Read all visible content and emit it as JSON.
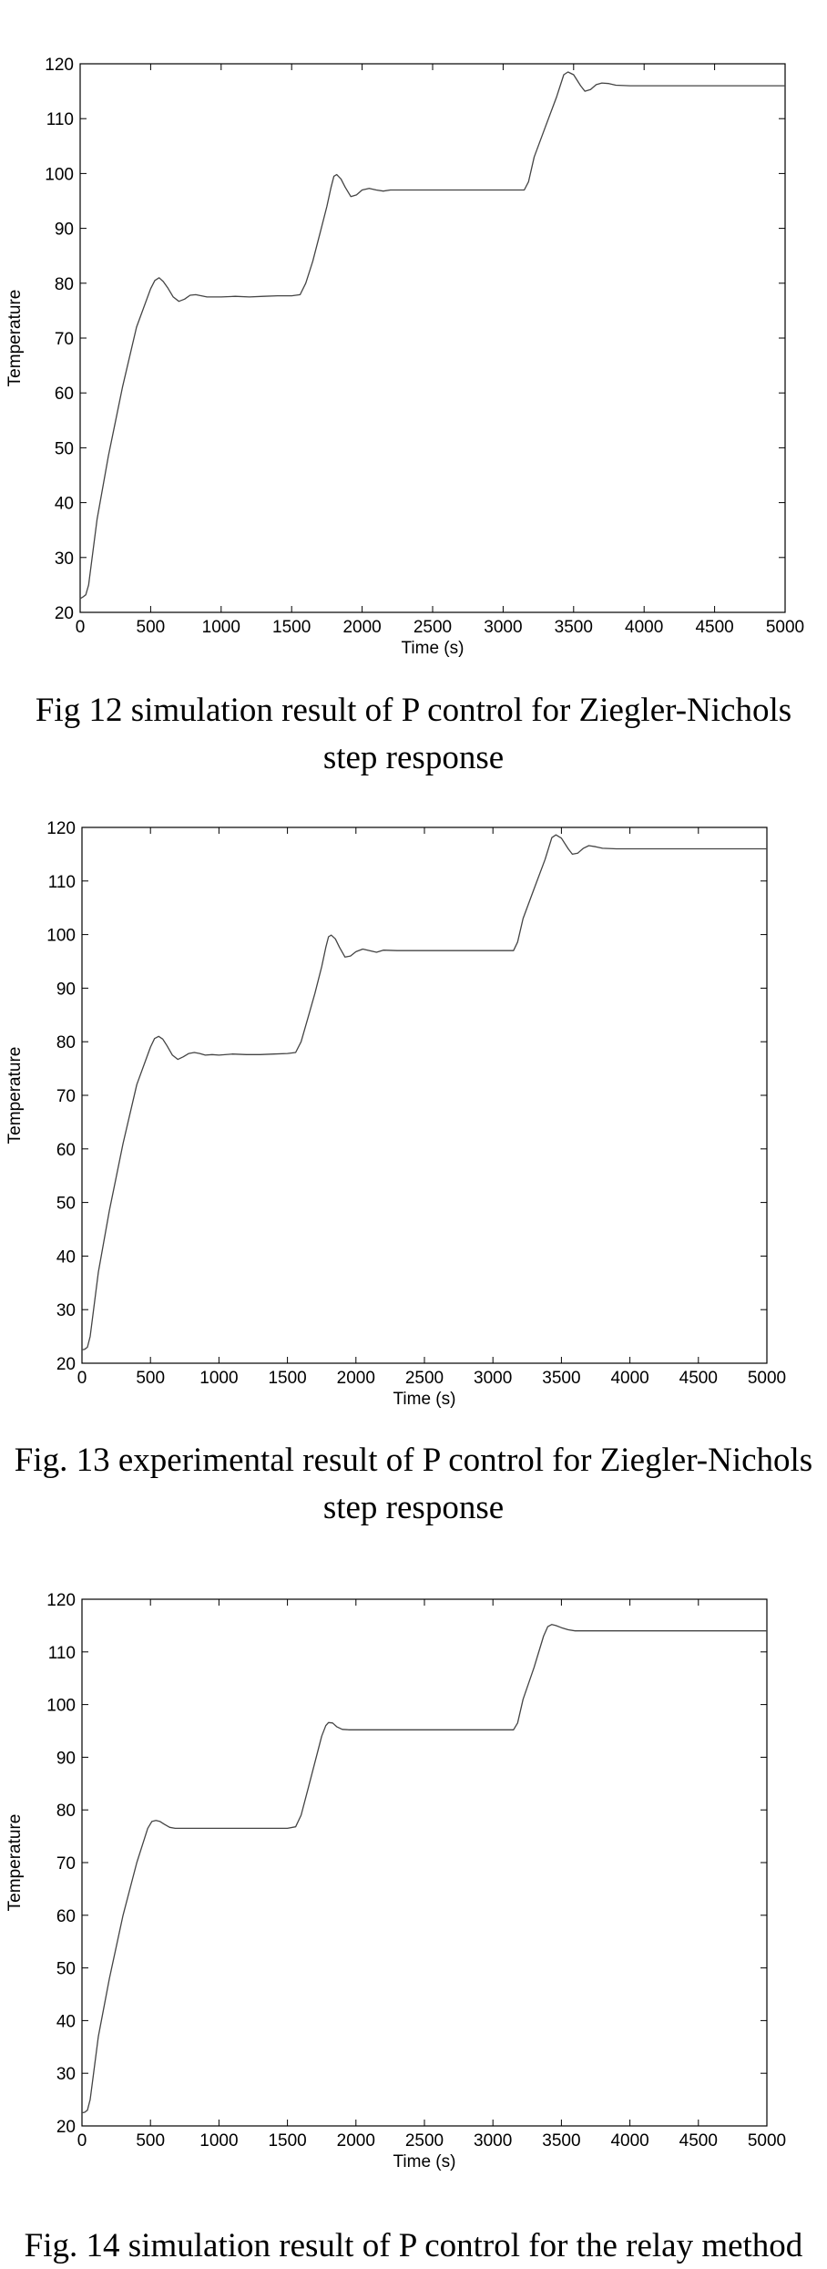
{
  "chart_data": [
    {
      "type": "line",
      "xlabel": "Time (s)",
      "ylabel": "Temperature",
      "xlim": [
        0,
        5000
      ],
      "ylim": [
        20,
        120
      ],
      "xticks": [
        "0",
        "500",
        "1000",
        "1500",
        "2000",
        "2500",
        "3000",
        "3500",
        "4000",
        "4500",
        "5000"
      ],
      "yticks": [
        "20",
        "30",
        "40",
        "50",
        "60",
        "70",
        "80",
        "90",
        "100",
        "110",
        "120"
      ],
      "grid": false,
      "series": [
        {
          "x": [
            0,
            20,
            40,
            60,
            80,
            120,
            200,
            300,
            400,
            500,
            530,
            560,
            590,
            620,
            660,
            700,
            740,
            780,
            820,
            860,
            900,
            950,
            1000,
            1100,
            1200,
            1300,
            1400,
            1500,
            1560,
            1600,
            1650,
            1700,
            1750,
            1780,
            1800,
            1820,
            1850,
            1880,
            1920,
            1960,
            2000,
            2050,
            2100,
            2150,
            2200,
            2300,
            2400,
            2500,
            2700,
            3000,
            3150,
            3180,
            3220,
            3300,
            3380,
            3430,
            3460,
            3500,
            3550,
            3580,
            3620,
            3660,
            3700,
            3750,
            3800,
            3900,
            4000,
            4500,
            5000
          ],
          "y": [
            22.5,
            22.8,
            23.2,
            25,
            29,
            37,
            48.5,
            61,
            72,
            79,
            80.5,
            81,
            80.3,
            79.2,
            77.5,
            76.7,
            77.1,
            77.8,
            77.9,
            77.7,
            77.5,
            77.5,
            77.5,
            77.6,
            77.5,
            77.6,
            77.7,
            77.7,
            77.9,
            80,
            84,
            89,
            94,
            97.5,
            99.5,
            99.8,
            99,
            97.5,
            95.8,
            96.1,
            97,
            97.3,
            97,
            96.8,
            97,
            97,
            97,
            97,
            97,
            97,
            97,
            98.5,
            103,
            108.5,
            114,
            118,
            118.5,
            118,
            116,
            115,
            115.3,
            116.2,
            116.5,
            116.4,
            116.1,
            116,
            116,
            116,
            116
          ]
        }
      ]
    },
    {
      "type": "line",
      "xlabel": "Time (s)",
      "ylabel": "Temperature",
      "xlim": [
        0,
        5000
      ],
      "ylim": [
        20,
        120
      ],
      "xticks": [
        "0",
        "500",
        "1000",
        "1500",
        "2000",
        "2500",
        "3000",
        "3500",
        "4000",
        "4500",
        "5000"
      ],
      "yticks": [
        "20",
        "30",
        "40",
        "50",
        "60",
        "70",
        "80",
        "90",
        "100",
        "110",
        "120"
      ],
      "grid": false,
      "series": [
        {
          "x": [
            0,
            20,
            40,
            60,
            80,
            120,
            200,
            300,
            400,
            500,
            530,
            560,
            590,
            620,
            660,
            700,
            740,
            780,
            820,
            860,
            900,
            950,
            1000,
            1100,
            1200,
            1300,
            1400,
            1500,
            1560,
            1600,
            1650,
            1700,
            1750,
            1780,
            1800,
            1820,
            1850,
            1880,
            1920,
            1960,
            2000,
            2050,
            2100,
            2150,
            2200,
            2300,
            2400,
            2500,
            2700,
            3000,
            3150,
            3180,
            3220,
            3300,
            3380,
            3430,
            3460,
            3500,
            3550,
            3580,
            3620,
            3660,
            3700,
            3750,
            3800,
            3900,
            4000,
            4500,
            5000
          ],
          "y": [
            22.5,
            22.6,
            23,
            25,
            29,
            37,
            48.5,
            61,
            72,
            79,
            80.6,
            81,
            80.5,
            79.3,
            77.5,
            76.7,
            77.2,
            77.8,
            78,
            77.8,
            77.5,
            77.6,
            77.5,
            77.7,
            77.6,
            77.6,
            77.7,
            77.8,
            78,
            80,
            84.5,
            89,
            94,
            97.6,
            99.6,
            99.9,
            99.2,
            97.6,
            95.8,
            96,
            96.8,
            97.3,
            97,
            96.7,
            97.1,
            97,
            97,
            97,
            97,
            97,
            97,
            98.6,
            103,
            108.5,
            114,
            118.1,
            118.6,
            118,
            116,
            115,
            115.2,
            116.1,
            116.6,
            116.4,
            116.1,
            116,
            116,
            116,
            116
          ]
        }
      ]
    },
    {
      "type": "line",
      "xlabel": "Time (s)",
      "ylabel": "Temperature",
      "xlim": [
        0,
        5000
      ],
      "ylim": [
        20,
        120
      ],
      "xticks": [
        "0",
        "500",
        "1000",
        "1500",
        "2000",
        "2500",
        "3000",
        "3500",
        "4000",
        "4500",
        "5000"
      ],
      "yticks": [
        "20",
        "30",
        "40",
        "50",
        "60",
        "70",
        "80",
        "90",
        "100",
        "110",
        "120"
      ],
      "grid": false,
      "series": [
        {
          "x": [
            0,
            20,
            40,
            60,
            80,
            120,
            200,
            300,
            400,
            480,
            510,
            540,
            570,
            600,
            640,
            680,
            720,
            760,
            800,
            900,
            1000,
            1200,
            1400,
            1500,
            1560,
            1600,
            1650,
            1700,
            1750,
            1780,
            1800,
            1830,
            1860,
            1900,
            1950,
            2000,
            2100,
            2500,
            3000,
            3150,
            3180,
            3220,
            3300,
            3370,
            3400,
            3430,
            3460,
            3500,
            3550,
            3600,
            3650,
            3700,
            4000,
            4500,
            5000
          ],
          "y": [
            22.5,
            22.6,
            23,
            25,
            29,
            37,
            48,
            60,
            70,
            76.5,
            77.8,
            78,
            77.8,
            77.3,
            76.7,
            76.5,
            76.5,
            76.5,
            76.5,
            76.5,
            76.5,
            76.5,
            76.5,
            76.5,
            76.8,
            79,
            84,
            89,
            94,
            96,
            96.6,
            96.5,
            95.8,
            95.3,
            95.2,
            95.2,
            95.2,
            95.2,
            95.2,
            95.2,
            96.5,
            101,
            107,
            113,
            114.8,
            115.2,
            115,
            114.6,
            114.2,
            114,
            114,
            114,
            114,
            114,
            114
          ]
        }
      ]
    }
  ],
  "captions": [
    {
      "line1": "Fig 12 simulation result of P control for Ziegler-Nichols",
      "line2": "step response"
    },
    {
      "line1": "Fig. 13 experimental result of P control for Ziegler-Nichols",
      "line2": "step response"
    },
    {
      "line1": "Fig. 14 simulation result of P control for the relay method",
      "line2": ""
    }
  ]
}
